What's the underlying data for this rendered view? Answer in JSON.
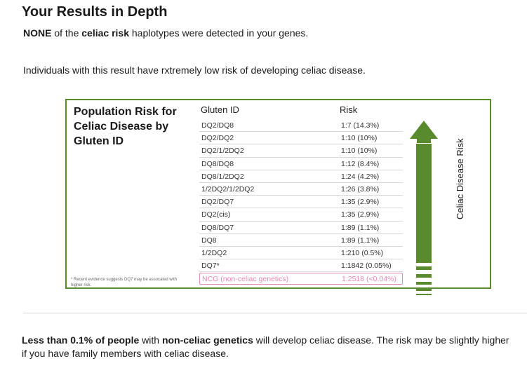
{
  "header": {
    "title": "Your Results in Depth",
    "line1": {
      "bold1": "NONE",
      "text1": " of the ",
      "bold2": "celiac risk",
      "text2": " haplotypes were detected in your genes."
    },
    "line2": "Individuals with this result have rxtremely low risk of developing celiac disease."
  },
  "card": {
    "title": "Population Risk for Celiac Disease by Gluten ID",
    "col_id": "Gluten ID",
    "col_risk": "Risk",
    "axis_label": "Celiac Disease Risk",
    "footnote": "* Recent evidence suggests DQ7 may be assocated with higher risk.",
    "rows": [
      {
        "id": "DQ2/DQ8",
        "risk": "1:7 (14.3%)"
      },
      {
        "id": "DQ2/DQ2",
        "risk": "1:10 (10%)"
      },
      {
        "id": "DQ2/1/2DQ2",
        "risk": "1:10 (10%)"
      },
      {
        "id": "DQ8/DQ8",
        "risk": "1:12 (8.4%)"
      },
      {
        "id": "DQ8/1/2DQ2",
        "risk": "1:24 (4.2%)"
      },
      {
        "id": "1/2DQ2/1/2DQ2",
        "risk": "1:26 (3.8%)"
      },
      {
        "id": "DQ2/DQ7",
        "risk": "1:35 (2.9%)"
      },
      {
        "id": "DQ2(cis)",
        "risk": "1:35 (2.9%)"
      },
      {
        "id": "DQ8/DQ7",
        "risk": "1:89 (1.1%)"
      },
      {
        "id": "DQ8",
        "risk": "1:89 (1.1%)"
      },
      {
        "id": "1/2DQ2",
        "risk": "1:210 (0.5%)"
      },
      {
        "id": "DQ7*",
        "risk": "1:1842 (0.05%)"
      }
    ],
    "highlight": {
      "id": "NCG (non-celiac genetics)",
      "risk": "1:2518 (<0.04%)"
    },
    "colors": {
      "green": "#5a8a2e",
      "pink": "#e48ab0"
    }
  },
  "footer": {
    "bold1": "Less than 0.1% of people",
    "text1": " with ",
    "bold2": "non-celiac genetics",
    "text2": " will develop celiac disease. The risk may be slightly higher if you have family members with celiac disease."
  }
}
